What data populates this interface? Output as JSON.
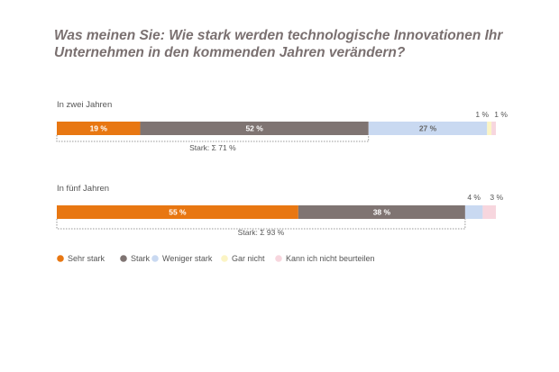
{
  "title": "Was meinen Sie: Wie stark werden technologische Innovationen Ihr Unternehmen in den kommenden Jahren verändern?",
  "chart_data": {
    "type": "bar",
    "orientation": "horizontal",
    "stacked": true,
    "title": "Was meinen Sie: Wie stark werden technologische Innovationen Ihr Unternehmen in den kommenden Jahren verändern?",
    "categories": [
      "In zwei Jahren",
      "In fünf Jahren"
    ],
    "series": [
      {
        "name": "Sehr stark",
        "color": "#e87712",
        "values": [
          19,
          55
        ]
      },
      {
        "name": "Stark",
        "color": "#7f7472",
        "values": [
          52,
          38
        ]
      },
      {
        "name": "Weniger stark",
        "color": "#c9d9f1",
        "values": [
          27,
          4
        ]
      },
      {
        "name": "Gar nicht",
        "color": "#fbf4c4",
        "values": [
          1,
          0
        ]
      },
      {
        "name": "Kann ich nicht beurteilen",
        "color": "#f7d6de",
        "values": [
          1,
          3
        ]
      }
    ],
    "value_labels": [
      [
        "19 %",
        "52 %",
        "27 %",
        "1 %",
        "1 %"
      ],
      [
        "55 %",
        "38 %",
        "4 %",
        "",
        "3 %"
      ]
    ],
    "sum_labels": [
      "Stark: Σ 71 %",
      "Stark: Σ 93 %"
    ],
    "sum_values": [
      71,
      93
    ],
    "legend_position": "bottom-left",
    "grid": false
  }
}
